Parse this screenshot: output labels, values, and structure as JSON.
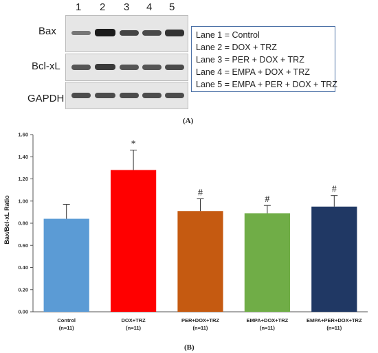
{
  "blot": {
    "lanes": [
      "1",
      "2",
      "3",
      "4",
      "5"
    ],
    "proteins": [
      "Bax",
      "Bcl-xL",
      "GAPDH"
    ],
    "legend": [
      "Lane 1 = Control",
      "Lane 2 = DOX + TRZ",
      "Lane 3 = PER + DOX + TRZ",
      "Lane 4 = EMPA + DOX + TRZ",
      "Lane 5 = EMPA + PER + DOX + TRZ"
    ],
    "panel_label": "(A)"
  },
  "chart_data": {
    "type": "bar",
    "ylabel": "Bax/Bcl-xL Ratio",
    "xlabel": "",
    "ylim": [
      0,
      1.6
    ],
    "yticks": [
      "0.00",
      "0.20",
      "0.40",
      "0.60",
      "0.80",
      "1.00",
      "1.20",
      "1.40",
      "1.60"
    ],
    "categories": [
      {
        "name": "Control",
        "n": "(n=11)"
      },
      {
        "name": "DOX+TRZ",
        "n": "(n=11)"
      },
      {
        "name": "PER+DOX+TRZ",
        "n": "(n=11)"
      },
      {
        "name": "EMPA+DOX+TRZ",
        "n": "(n=11)"
      },
      {
        "name": "EMPA+PER+DOX+TRZ",
        "n": "(n=11)"
      }
    ],
    "values": [
      0.84,
      1.28,
      0.91,
      0.89,
      0.95
    ],
    "errors": [
      0.13,
      0.18,
      0.11,
      0.07,
      0.1
    ],
    "significance": [
      "",
      "*",
      "#",
      "#",
      "#"
    ],
    "colors": [
      "#5b9bd5",
      "#ff0000",
      "#c55a11",
      "#70ad47",
      "#203864"
    ],
    "grid": false,
    "panel_label": "(B)"
  }
}
